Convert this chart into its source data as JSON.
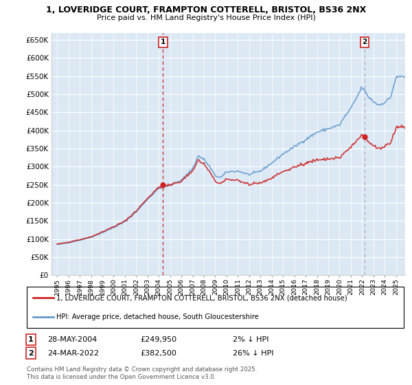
{
  "title_line1": "1, LOVERIDGE COURT, FRAMPTON COTTERELL, BRISTOL, BS36 2NX",
  "title_line2": "Price paid vs. HM Land Registry's House Price Index (HPI)",
  "background_color": "#ffffff",
  "plot_bg_color": "#dce9f5",
  "grid_color": "#ffffff",
  "sale1_x": 2004.38,
  "sale1_y": 249950,
  "sale1_label": "1",
  "sale1_vline_color": "#cc2222",
  "sale1_vline_style": "--",
  "sale2_x": 2022.21,
  "sale2_y": 382500,
  "sale2_label": "2",
  "sale2_vline_color": "#aaaacc",
  "sale2_vline_style": "--",
  "hpi_line_color": "#6699cc",
  "price_line_color": "#cc2222",
  "dot_color": "#cc2222",
  "ylim": [
    0,
    670000
  ],
  "yticks": [
    0,
    50000,
    100000,
    150000,
    200000,
    250000,
    300000,
    350000,
    400000,
    450000,
    500000,
    550000,
    600000,
    650000
  ],
  "ytick_labels": [
    "£0",
    "£50K",
    "£100K",
    "£150K",
    "£200K",
    "£250K",
    "£300K",
    "£350K",
    "£400K",
    "£450K",
    "£500K",
    "£550K",
    "£600K",
    "£650K"
  ],
  "xlim": [
    1994.5,
    2025.8
  ],
  "xticks": [
    1995,
    1996,
    1997,
    1998,
    1999,
    2000,
    2001,
    2002,
    2003,
    2004,
    2005,
    2006,
    2007,
    2008,
    2009,
    2010,
    2011,
    2012,
    2013,
    2014,
    2015,
    2016,
    2017,
    2018,
    2019,
    2020,
    2021,
    2022,
    2023,
    2024,
    2025
  ],
  "legend1": "1, LOVERIDGE COURT, FRAMPTON COTTERELL, BRISTOL, BS36 2NX (detached house)",
  "legend2": "HPI: Average price, detached house, South Gloucestershire",
  "footnote": "Contains HM Land Registry data © Crown copyright and database right 2025.\nThis data is licensed under the Open Government Licence v3.0."
}
